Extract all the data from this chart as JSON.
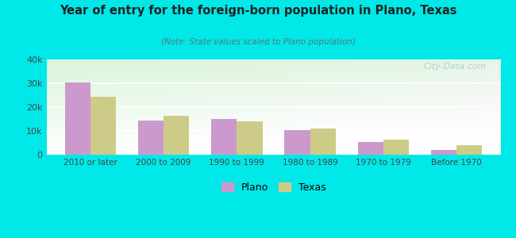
{
  "title": "Year of entry for the foreign-born population in Plano, Texas",
  "subtitle": "(Note: State values scaled to Plano population)",
  "categories": [
    "2010 or later",
    "2000 to 2009",
    "1990 to 1999",
    "1980 to 1989",
    "1970 to 1979",
    "Before 1970"
  ],
  "plano_values": [
    30500,
    14500,
    15000,
    10500,
    5500,
    2000
  ],
  "texas_values": [
    24500,
    16500,
    14000,
    11000,
    6500,
    4000
  ],
  "plano_color": "#cc99cc",
  "texas_color": "#cccc88",
  "background_color": "#00e8e8",
  "ylim": [
    0,
    40000
  ],
  "yticks": [
    0,
    10000,
    20000,
    30000,
    40000
  ],
  "ytick_labels": [
    "0",
    "10k",
    "20k",
    "30k",
    "40k"
  ],
  "bar_width": 0.35,
  "legend_labels": [
    "Plano",
    "Texas"
  ],
  "watermark": "City-Data.com"
}
